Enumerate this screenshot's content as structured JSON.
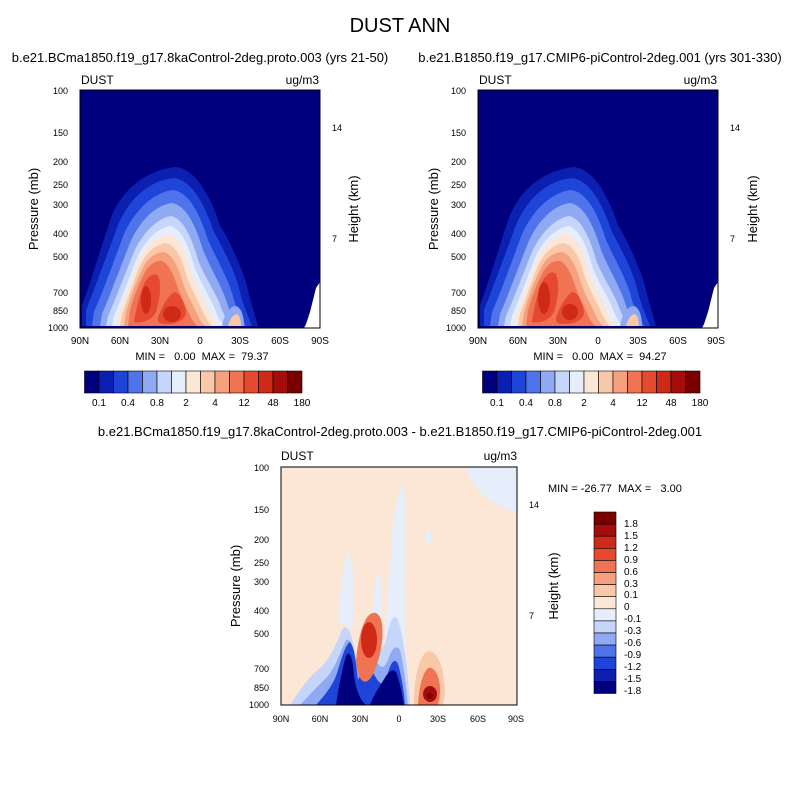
{
  "figure": {
    "title": "DUST ANN"
  },
  "colors": {
    "dark_navy": "#00007f",
    "navy": "#0b1fb0",
    "blue": "#1e45d8",
    "mid_blue": "#4f73ea",
    "light_blue": "#8fa9f2",
    "pale_blue": "#c6d6fb",
    "ice": "#e6eefc",
    "peach_pale": "#fce6d6",
    "peach": "#fac8a8",
    "salmon": "#f6a07e",
    "coral": "#f07454",
    "red_orange": "#e5492f",
    "red": "#cf2a17",
    "dark_red": "#a50d0d",
    "maroon": "#7a0000",
    "diff_background": "#fce6d6"
  },
  "chart_data": [
    {
      "type": "heatmap",
      "id": "panel-1",
      "title": "b.e21.BCma1850.f19_g17.8kaControl-2deg.proto.003 (yrs 21-50)",
      "left_label": "DUST",
      "right_label": "ug/m3",
      "ylabel": "Pressure (mb)",
      "ylabel_right": "Height (km)",
      "x_ticks": [
        "90N",
        "60N",
        "30N",
        "0",
        "30S",
        "60S",
        "90S"
      ],
      "x_range": [
        90,
        -90
      ],
      "y_ticks": [
        100,
        150,
        200,
        250,
        300,
        400,
        500,
        700,
        850,
        1000
      ],
      "y_range": [
        100,
        1000
      ],
      "y_scale": "log",
      "height_ticks": [
        14,
        7
      ],
      "stats": "MIN =   0.00  MAX =  79.37",
      "min": 0.0,
      "max": 79.37,
      "colorbar_labels": [
        "0.1",
        "0.4",
        "0.8",
        "2",
        "4",
        "12",
        "48",
        "180"
      ],
      "colorbar_orientation": "horizontal"
    },
    {
      "type": "heatmap",
      "id": "panel-2",
      "title": "b.e21.B1850.f19_g17.CMIP6-piControl-2deg.001 (yrs 301-330)",
      "left_label": "DUST",
      "right_label": "ug/m3",
      "ylabel": "Pressure (mb)",
      "ylabel_right": "Height (km)",
      "x_ticks": [
        "90N",
        "60N",
        "30N",
        "0",
        "30S",
        "60S",
        "90S"
      ],
      "x_range": [
        90,
        -90
      ],
      "y_ticks": [
        100,
        150,
        200,
        250,
        300,
        400,
        500,
        700,
        850,
        1000
      ],
      "y_range": [
        100,
        1000
      ],
      "y_scale": "log",
      "height_ticks": [
        14,
        7
      ],
      "stats": "MIN =   0.00  MAX =  94.27",
      "min": 0.0,
      "max": 94.27,
      "colorbar_labels": [
        "0.1",
        "0.4",
        "0.8",
        "2",
        "4",
        "12",
        "48",
        "180"
      ],
      "colorbar_orientation": "horizontal"
    },
    {
      "type": "heatmap",
      "id": "panel-diff",
      "title": "b.e21.BCma1850.f19_g17.8kaControl-2deg.proto.003 - b.e21.B1850.f19_g17.CMIP6-piControl-2deg.001",
      "left_label": "DUST",
      "right_label": "ug/m3",
      "ylabel": "Pressure (mb)",
      "ylabel_right": "Height (km)",
      "x_ticks": [
        "90N",
        "60N",
        "30N",
        "0",
        "30S",
        "60S",
        "90S"
      ],
      "x_range": [
        90,
        -90
      ],
      "y_ticks": [
        100,
        150,
        200,
        250,
        300,
        400,
        500,
        700,
        850,
        1000
      ],
      "y_range": [
        100,
        1000
      ],
      "y_scale": "log",
      "height_ticks": [
        14,
        7
      ],
      "stats": "MIN = -26.77  MAX =   3.00",
      "min": -26.77,
      "max": 3.0,
      "colorbar_labels": [
        "1.8",
        "1.5",
        "1.2",
        "0.9",
        "0.6",
        "0.3",
        "0.1",
        "0",
        "-0.1",
        "-0.3",
        "-0.6",
        "-0.9",
        "-1.2",
        "-1.5",
        "-1.8"
      ],
      "colorbar_orientation": "vertical"
    }
  ]
}
